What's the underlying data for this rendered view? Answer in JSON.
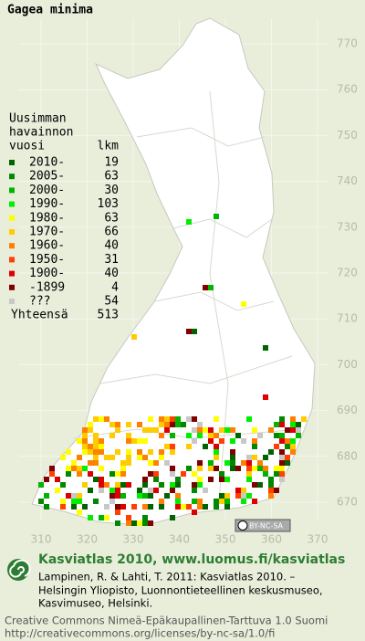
{
  "title": "Gagea minima",
  "legend": {
    "header": [
      "Uusimman",
      "havainnon",
      "vuosi"
    ],
    "count_header": "lkm",
    "entries": [
      {
        "label": "2010-",
        "count": "19",
        "color": "#006400"
      },
      {
        "label": "2005-",
        "count": "63",
        "color": "#008800"
      },
      {
        "label": "2000-",
        "count": "30",
        "color": "#00b400"
      },
      {
        "label": "1990-",
        "count": "103",
        "color": "#00ee00"
      },
      {
        "label": "1980-",
        "count": "63",
        "color": "#ffff00"
      },
      {
        "label": "1970-",
        "count": "66",
        "color": "#ffcc00"
      },
      {
        "label": "1960-",
        "count": "40",
        "color": "#ff8000"
      },
      {
        "label": "1950-",
        "count": "31",
        "color": "#ff4000"
      },
      {
        "label": "1900-",
        "count": "40",
        "color": "#dd0000"
      },
      {
        "label": "-1899",
        "count": "4",
        "color": "#800000"
      },
      {
        "label": "???",
        "count": "54",
        "color": "#c8c8c8"
      }
    ],
    "total_label": "Yhteensä",
    "total": "513"
  },
  "grid": {
    "y_labels": [
      "770",
      "760",
      "750",
      "740",
      "730",
      "720",
      "710",
      "700",
      "690",
      "680",
      "670"
    ],
    "x_labels": [
      "310",
      "320",
      "330",
      "340",
      "350",
      "360",
      "370"
    ]
  },
  "license_badge": "BY-NC-SA",
  "footer": {
    "heading": "Kasviatlas 2010, www.luomus.fi/kasviatlas",
    "citation": [
      "Lampinen, R. & Lahti, T. 2011: Kasviatlas 2010. –",
      "Helsingin Yliopisto, Luonnontieteellinen keskusmuseo,",
      "Kasvimuseo, Helsinki."
    ],
    "license": [
      "Creative Commons Nimeä-Epäkaupallinen-Tarttuva 1.0 Suomi",
      "http://creativecommons.org/licenses/by-nc-sa/1.0/fi"
    ]
  }
}
